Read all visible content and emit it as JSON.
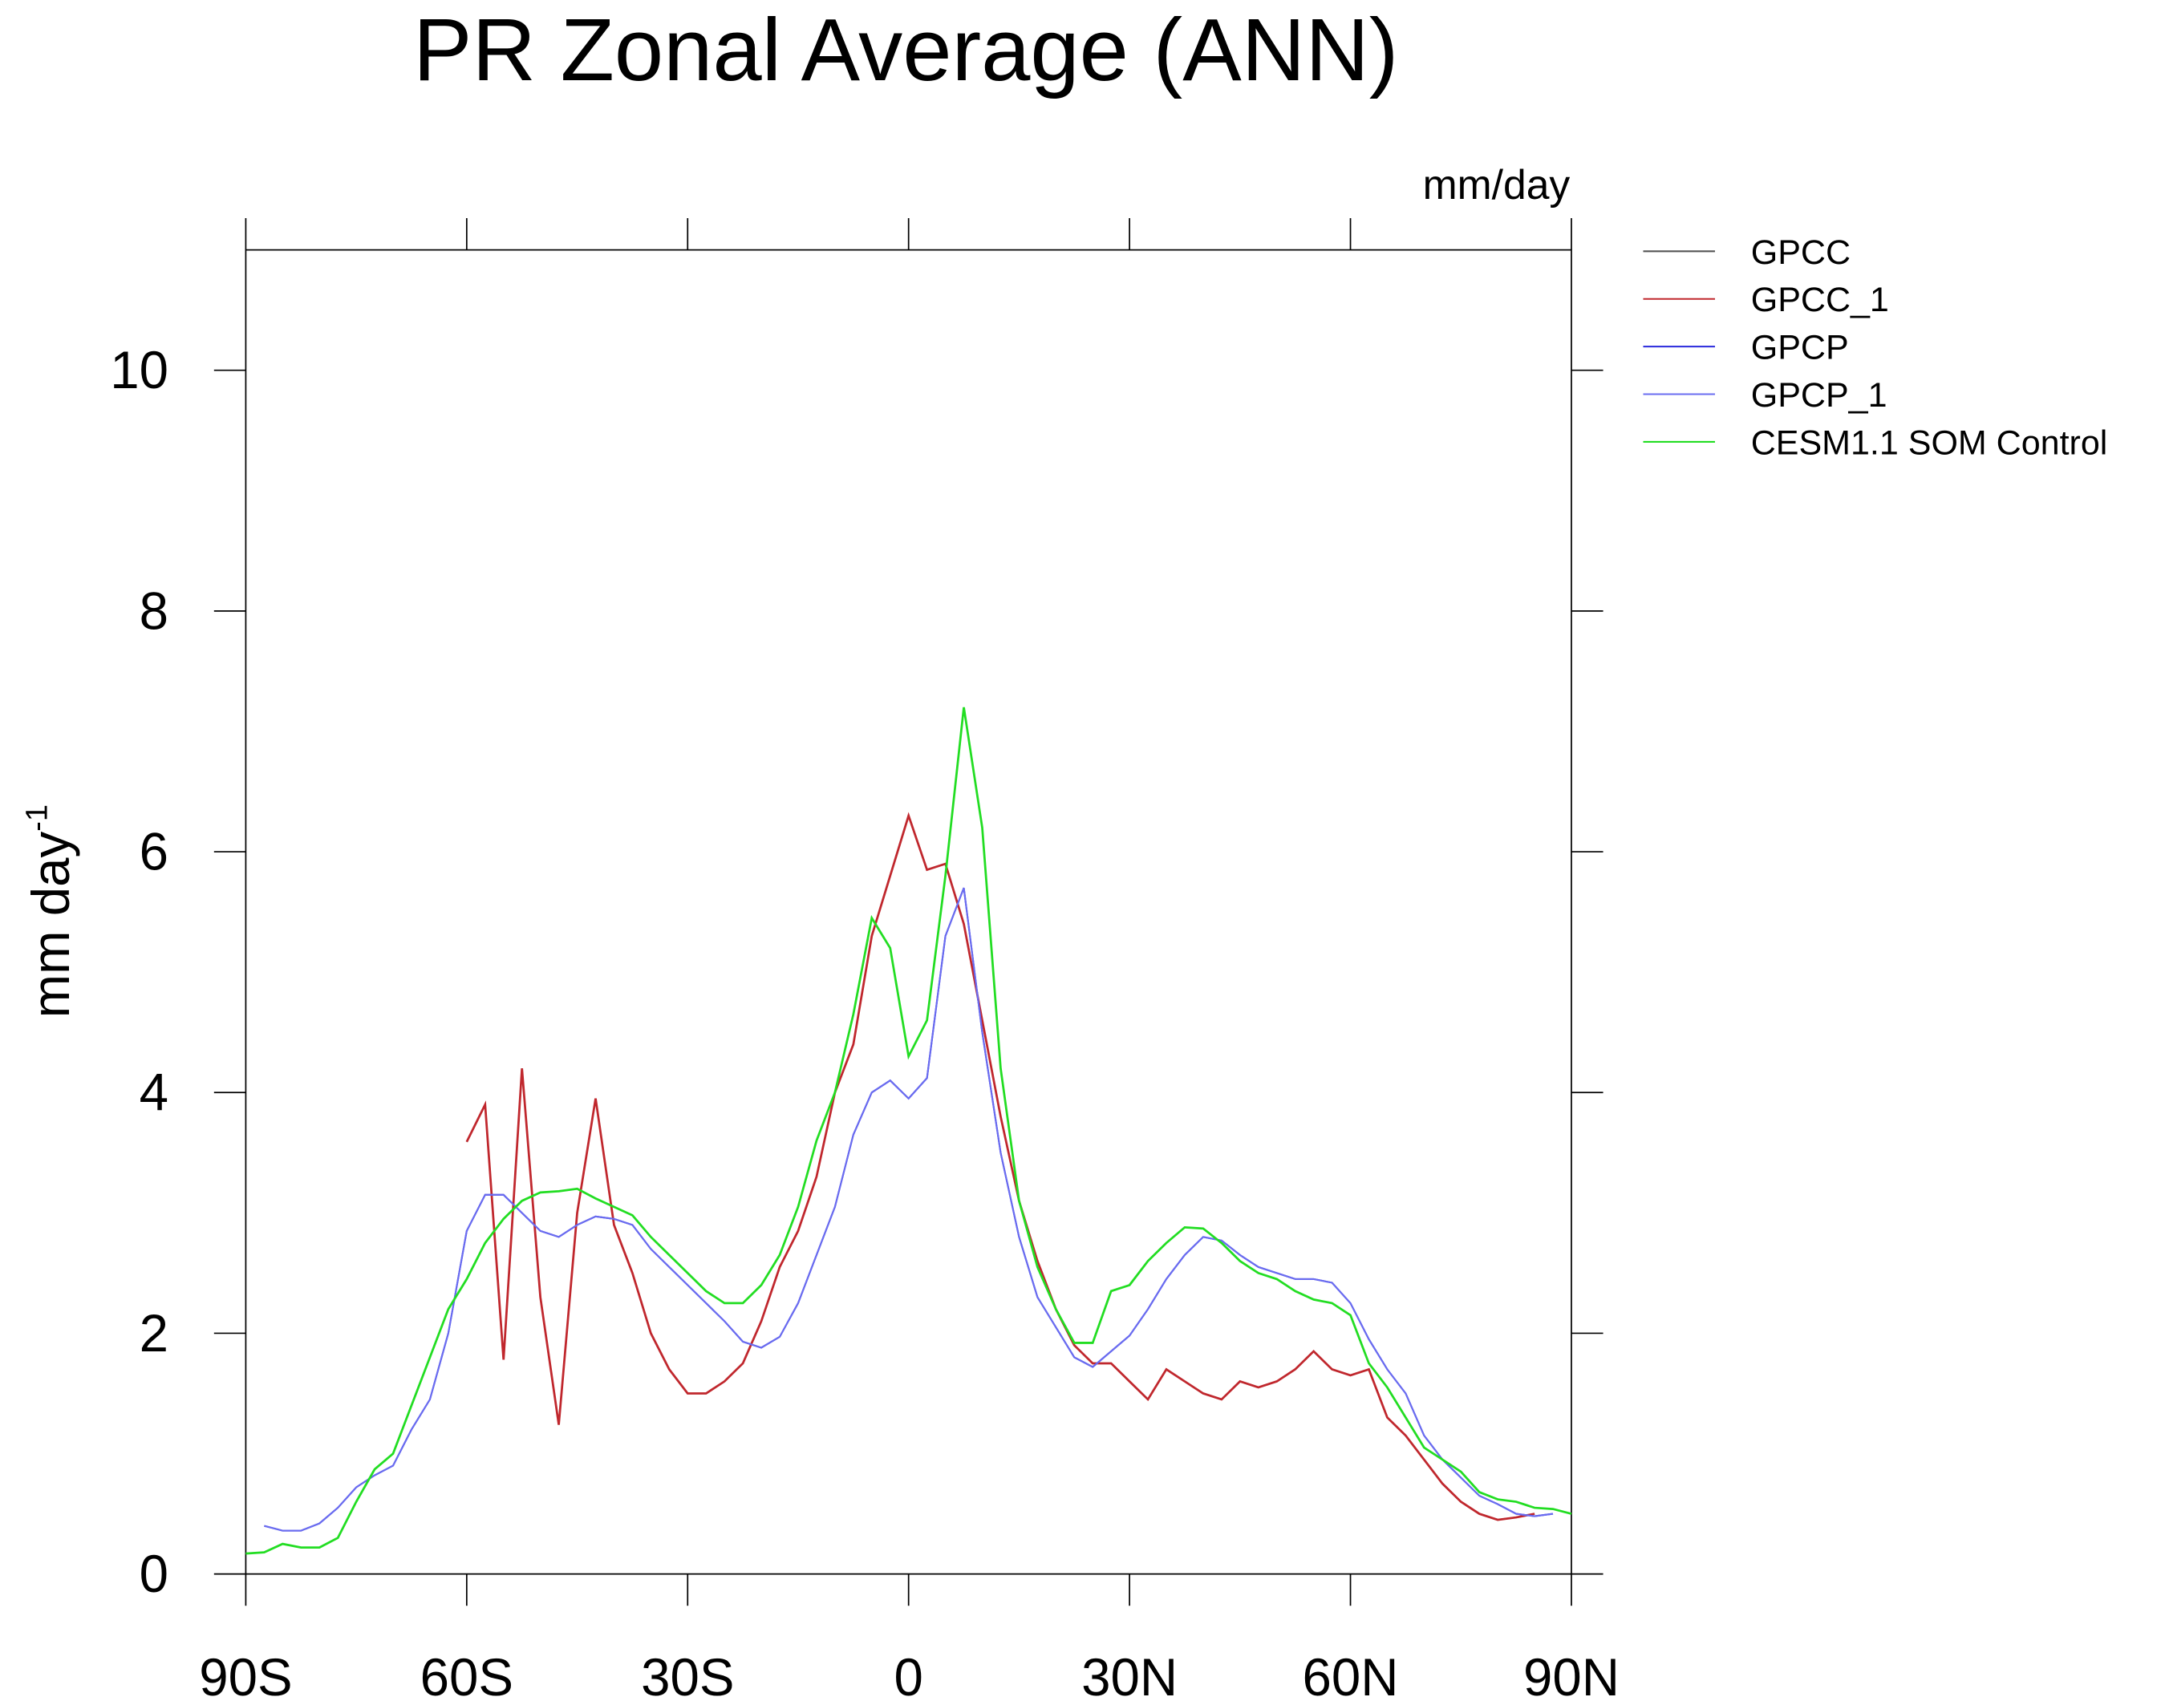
{
  "chart_data": {
    "type": "line",
    "title": "PR Zonal Average (ANN)",
    "units_label": "mm/day",
    "ylabel": "mm day",
    "ylabel_superscript": "-1",
    "xlim": [
      -90,
      90
    ],
    "xticks": [
      {
        "value": -90,
        "label": "90S"
      },
      {
        "value": -60,
        "label": "60S"
      },
      {
        "value": -30,
        "label": "30S"
      },
      0,
      {
        "value": 30,
        "label": "30N"
      },
      {
        "value": 60,
        "label": "60N"
      },
      {
        "value": 90,
        "label": "90N"
      }
    ],
    "ylim": [
      0,
      11
    ],
    "yticks": [
      0,
      2,
      4,
      6,
      8,
      10
    ],
    "x": [
      -90,
      -87.5,
      -85,
      -82.5,
      -80,
      -77.5,
      -75,
      -72.5,
      -70,
      -67.5,
      -65,
      -62.5,
      -60,
      -57.5,
      -55,
      -52.5,
      -50,
      -47.5,
      -45,
      -42.5,
      -40,
      -37.5,
      -35,
      -32.5,
      -30,
      -27.5,
      -25,
      -22.5,
      -20,
      -17.5,
      -15,
      -12.5,
      -10,
      -7.5,
      -5,
      -2.5,
      0,
      2.5,
      5,
      7.5,
      10,
      12.5,
      15,
      17.5,
      20,
      22.5,
      25,
      27.5,
      30,
      32.5,
      35,
      37.5,
      40,
      42.5,
      45,
      47.5,
      50,
      52.5,
      55,
      57.5,
      60,
      62.5,
      65,
      67.5,
      70,
      72.5,
      75,
      77.5,
      80,
      82.5,
      85,
      87.5,
      90
    ],
    "series": [
      {
        "name": "GPCC",
        "color": "#555555",
        "values": [
          null,
          null,
          null,
          null,
          null,
          null,
          null,
          null,
          null,
          null,
          null,
          null,
          3.59,
          3.9,
          1.78,
          4.2,
          2.3,
          1.24,
          3.0,
          3.95,
          2.9,
          2.5,
          2.0,
          1.7,
          1.5,
          1.5,
          1.6,
          1.75,
          2.1,
          2.55,
          2.85,
          3.3,
          4.0,
          4.4,
          5.3,
          5.8,
          6.3,
          5.85,
          5.9,
          5.4,
          4.6,
          3.8,
          3.1,
          2.6,
          2.2,
          1.9,
          1.75,
          1.75,
          1.6,
          1.45,
          1.7,
          1.6,
          1.5,
          1.45,
          1.6,
          1.55,
          1.6,
          1.7,
          1.85,
          1.7,
          1.65,
          1.7,
          1.3,
          1.15,
          0.95,
          0.75,
          0.6,
          0.5,
          0.45,
          0.47,
          0.5,
          null,
          null
        ]
      },
      {
        "name": "GPCC_1",
        "color": "#c0272d",
        "values": [
          null,
          null,
          null,
          null,
          null,
          null,
          null,
          null,
          null,
          null,
          null,
          null,
          3.59,
          3.9,
          1.78,
          4.2,
          2.3,
          1.24,
          3.0,
          3.95,
          2.9,
          2.5,
          2.0,
          1.7,
          1.5,
          1.5,
          1.6,
          1.75,
          2.1,
          2.55,
          2.85,
          3.3,
          4.0,
          4.4,
          5.3,
          5.8,
          6.3,
          5.85,
          5.9,
          5.4,
          4.6,
          3.8,
          3.1,
          2.6,
          2.2,
          1.9,
          1.75,
          1.75,
          1.6,
          1.45,
          1.7,
          1.6,
          1.5,
          1.45,
          1.6,
          1.55,
          1.6,
          1.7,
          1.85,
          1.7,
          1.65,
          1.7,
          1.3,
          1.15,
          0.95,
          0.75,
          0.6,
          0.5,
          0.45,
          0.47,
          0.5,
          null,
          null
        ]
      },
      {
        "name": "GPCP",
        "color": "#2a2adc",
        "values": [
          null,
          0.4,
          0.36,
          0.36,
          0.42,
          0.55,
          0.72,
          0.82,
          0.9,
          1.2,
          1.45,
          2.0,
          2.85,
          3.15,
          3.15,
          3.0,
          2.85,
          2.8,
          2.9,
          2.97,
          2.95,
          2.9,
          2.7,
          2.55,
          2.4,
          2.25,
          2.1,
          1.93,
          1.88,
          1.97,
          2.25,
          2.65,
          3.05,
          3.65,
          4.0,
          4.1,
          3.95,
          4.12,
          5.3,
          5.7,
          4.5,
          3.5,
          2.8,
          2.3,
          2.05,
          1.8,
          1.72,
          1.85,
          1.98,
          2.2,
          2.45,
          2.65,
          2.8,
          2.77,
          2.65,
          2.55,
          2.5,
          2.45,
          2.45,
          2.42,
          2.25,
          1.95,
          1.7,
          1.5,
          1.15,
          0.95,
          0.8,
          0.65,
          0.58,
          0.5,
          0.48,
          0.5,
          null
        ]
      },
      {
        "name": "GPCP_1",
        "color": "#6a6cf0",
        "values": [
          null,
          0.4,
          0.36,
          0.36,
          0.42,
          0.55,
          0.72,
          0.82,
          0.9,
          1.2,
          1.45,
          2.0,
          2.85,
          3.15,
          3.15,
          3.0,
          2.85,
          2.8,
          2.9,
          2.97,
          2.95,
          2.9,
          2.7,
          2.55,
          2.4,
          2.25,
          2.1,
          1.93,
          1.88,
          1.97,
          2.25,
          2.65,
          3.05,
          3.65,
          4.0,
          4.1,
          3.95,
          4.12,
          5.3,
          5.7,
          4.5,
          3.5,
          2.8,
          2.3,
          2.05,
          1.8,
          1.72,
          1.85,
          1.98,
          2.2,
          2.45,
          2.65,
          2.8,
          2.77,
          2.65,
          2.55,
          2.5,
          2.45,
          2.45,
          2.42,
          2.25,
          1.95,
          1.7,
          1.5,
          1.15,
          0.95,
          0.8,
          0.65,
          0.58,
          0.5,
          0.48,
          0.5,
          null
        ]
      },
      {
        "name": "CESM1.1 SOM Control",
        "color": "#22dd22",
        "values": [
          0.17,
          0.18,
          0.25,
          0.22,
          0.22,
          0.3,
          0.6,
          0.87,
          1.0,
          1.4,
          1.8,
          2.2,
          2.45,
          2.75,
          2.95,
          3.1,
          3.17,
          3.18,
          3.2,
          3.12,
          3.05,
          2.98,
          2.8,
          2.65,
          2.5,
          2.35,
          2.25,
          2.25,
          2.4,
          2.65,
          3.05,
          3.6,
          4.0,
          4.65,
          5.45,
          5.2,
          4.3,
          4.6,
          5.8,
          7.2,
          6.2,
          4.2,
          3.1,
          2.55,
          2.2,
          1.92,
          1.92,
          2.35,
          2.4,
          2.6,
          2.75,
          2.88,
          2.87,
          2.75,
          2.6,
          2.5,
          2.45,
          2.35,
          2.28,
          2.25,
          2.15,
          1.75,
          1.55,
          1.3,
          1.05,
          0.95,
          0.85,
          0.68,
          0.62,
          0.6,
          0.55,
          0.54,
          0.5
        ]
      }
    ]
  }
}
